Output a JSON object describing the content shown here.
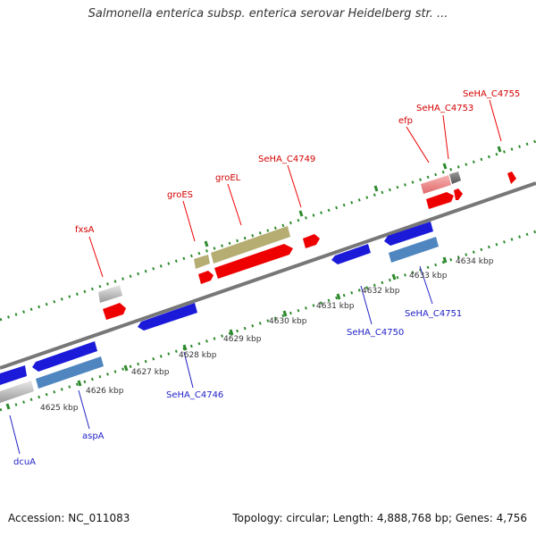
{
  "title": "Salmonella enterica subsp. enterica serovar Heidelberg str. ...",
  "accession_text": "Accession: NC_011083",
  "summary_text": "Topology: circular; Length: 4,888,768 bp; Genes: 4,756",
  "colors": {
    "forward_gene": "#ee0000",
    "forward_label": "#d40000",
    "reverse_gene": "#1a1ad8",
    "reverse_label": "#2222c8",
    "khaki_gene": "#b5ad72",
    "steel_gene": "#4f86bf",
    "pseudo_gene": "#bdbdbd",
    "track": "#888888",
    "tick": "#2d8a2d"
  },
  "ticks": [
    {
      "label": "4625 kbp"
    },
    {
      "label": "4626 kbp"
    },
    {
      "label": "4627 kbp"
    },
    {
      "label": "4628 kbp"
    },
    {
      "label": "4629 kbp"
    },
    {
      "label": "4630 kbp"
    },
    {
      "label": "4631 kbp"
    },
    {
      "label": "4632 kbp"
    },
    {
      "label": "4633 kbp"
    },
    {
      "label": "4634 kbp"
    }
  ],
  "forward_labels": [
    "fxsA",
    "groES",
    "groEL",
    "SeHA_C4749",
    "efp",
    "SeHA_C4753",
    "SeHA_C4755"
  ],
  "reverse_labels": [
    "dcuA",
    "aspA",
    "SeHA_C4746",
    "SeHA_C4750",
    "SeHA_C4751"
  ]
}
